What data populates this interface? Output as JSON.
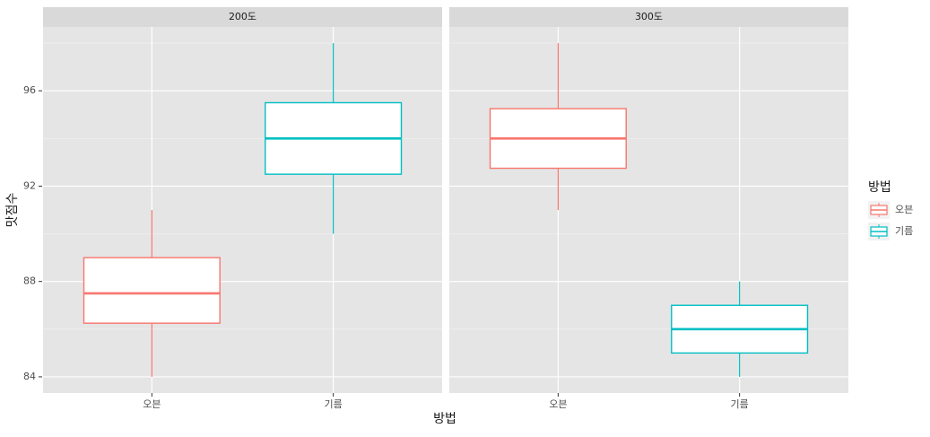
{
  "chart_data": {
    "type": "boxplot",
    "x_label": "방법",
    "y_label": "맛점수",
    "legend_title": "방법",
    "categories": [
      "오븐",
      "기름"
    ],
    "series": [
      {
        "name": "오븐",
        "color": "#F8766D"
      },
      {
        "name": "기름",
        "color": "#00BFC4"
      }
    ],
    "ylim": [
      83.32,
      98.68
    ],
    "yticks": [
      84,
      88,
      92,
      96
    ],
    "grid": true,
    "facets": [
      {
        "title": "200도",
        "boxes": [
          {
            "min": 84,
            "q1": 86.25,
            "median": 87.5,
            "q3": 89,
            "max": 91
          },
          {
            "min": 90,
            "q1": 92.5,
            "median": 94,
            "q3": 95.5,
            "max": 98
          }
        ]
      },
      {
        "title": "300도",
        "boxes": [
          {
            "min": 91,
            "q1": 92.75,
            "median": 94,
            "q3": 95.25,
            "max": 98
          },
          {
            "min": 84,
            "q1": 85,
            "median": 86,
            "q3": 87,
            "max": 88
          }
        ]
      }
    ]
  }
}
